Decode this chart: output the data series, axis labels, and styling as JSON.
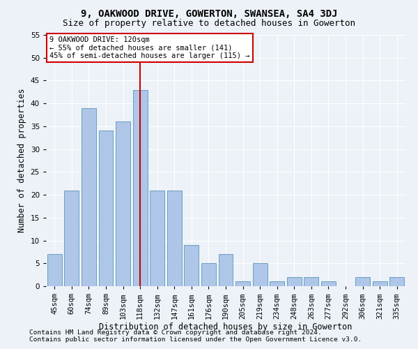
{
  "title": "9, OAKWOOD DRIVE, GOWERTON, SWANSEA, SA4 3DJ",
  "subtitle": "Size of property relative to detached houses in Gowerton",
  "xlabel": "Distribution of detached houses by size in Gowerton",
  "ylabel": "Number of detached properties",
  "categories": [
    "45sqm",
    "60sqm",
    "74sqm",
    "89sqm",
    "103sqm",
    "118sqm",
    "132sqm",
    "147sqm",
    "161sqm",
    "176sqm",
    "190sqm",
    "205sqm",
    "219sqm",
    "234sqm",
    "248sqm",
    "263sqm",
    "277sqm",
    "292sqm",
    "306sqm",
    "321sqm",
    "335sqm"
  ],
  "values": [
    7,
    21,
    39,
    34,
    36,
    43,
    21,
    21,
    9,
    5,
    7,
    1,
    5,
    1,
    2,
    2,
    1,
    0,
    2,
    1,
    2
  ],
  "bar_color": "#aec6e8",
  "bar_edge_color": "#6a9fc0",
  "vline_x": 5,
  "vline_color": "#cc0000",
  "annotation_text": "9 OAKWOOD DRIVE: 120sqm\n← 55% of detached houses are smaller (141)\n45% of semi-detached houses are larger (115) →",
  "annotation_box_color": "#ffffff",
  "annotation_box_edge": "#cc0000",
  "ylim": [
    0,
    55
  ],
  "yticks": [
    0,
    5,
    10,
    15,
    20,
    25,
    30,
    35,
    40,
    45,
    50,
    55
  ],
  "footnote1": "Contains HM Land Registry data © Crown copyright and database right 2024.",
  "footnote2": "Contains public sector information licensed under the Open Government Licence v3.0.",
  "bg_color": "#edf2f8",
  "plot_bg_color": "#edf2f8",
  "title_fontsize": 10,
  "subtitle_fontsize": 9,
  "label_fontsize": 8.5,
  "tick_fontsize": 7.5,
  "footnote_fontsize": 6.8
}
